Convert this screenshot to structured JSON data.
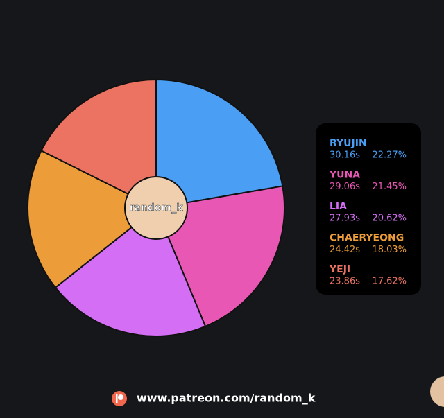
{
  "chart_data": {
    "type": "pie",
    "categories": [
      "RYUJIN",
      "YUNA",
      "LIA",
      "CHAERYEONG",
      "YEJI"
    ],
    "values": [
      22.27,
      21.45,
      20.62,
      18.03,
      17.62
    ],
    "value_labels": [
      "22.27%",
      "21.45%",
      "20.62%",
      "18.03%",
      "17.62%"
    ],
    "times": [
      30.16,
      29.06,
      27.93,
      24.42,
      23.86
    ],
    "time_labels": [
      "30.16s",
      "29.06s",
      "27.93s",
      "24.42s",
      "23.86s"
    ],
    "colors": [
      "#4a9ff5",
      "#e957b5",
      "#d46ef5",
      "#ec9c38",
      "#ec7362"
    ],
    "center_label": "random_k"
  },
  "footer": {
    "url": "www.patreon.com/random_k"
  }
}
